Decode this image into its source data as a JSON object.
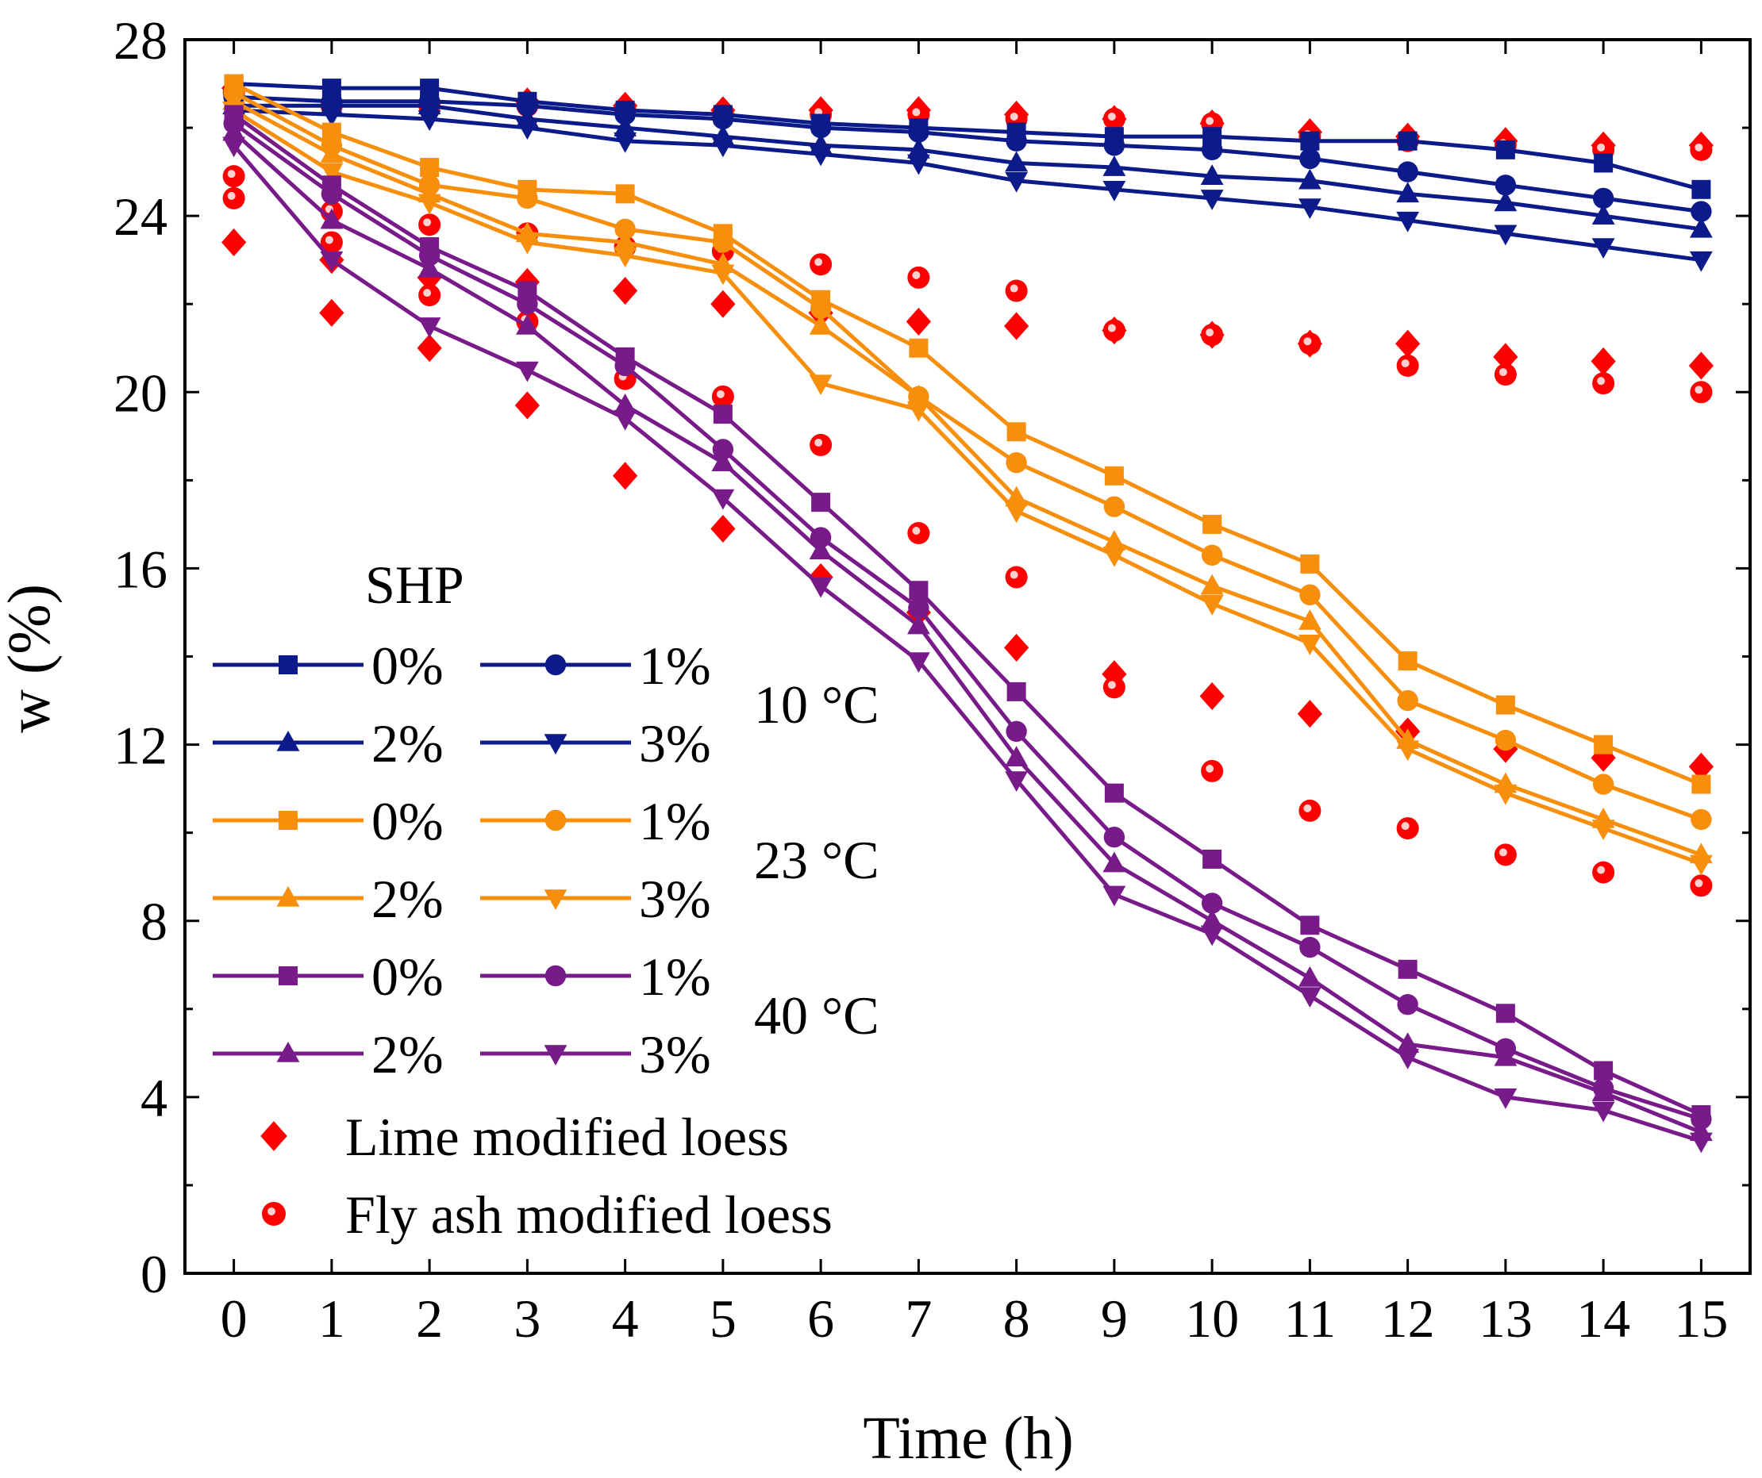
{
  "chart_data": {
    "type": "line",
    "xlabel": "Time (h)",
    "ylabel": "w (%)",
    "xlim": [
      -0.5,
      15.5
    ],
    "ylim": [
      0,
      28
    ],
    "x_ticks": [
      0,
      1,
      2,
      3,
      4,
      5,
      6,
      7,
      8,
      9,
      10,
      11,
      12,
      13,
      14,
      15
    ],
    "y_ticks": [
      0,
      4,
      8,
      12,
      16,
      20,
      24,
      28
    ],
    "x": [
      0,
      1,
      2,
      3,
      4,
      5,
      6,
      7,
      8,
      9,
      10,
      11,
      12,
      13,
      14,
      15
    ],
    "legend_title": "SHP",
    "colors": {
      "10C": "#0d1a8a",
      "23C": "#f78e0c",
      "40C": "#781a8a",
      "reference": "#ff0000"
    },
    "series": [
      {
        "name": "0%",
        "group": "10 °C",
        "marker": "square",
        "values": [
          27.0,
          26.9,
          26.9,
          26.6,
          26.4,
          26.3,
          26.1,
          26.0,
          25.9,
          25.8,
          25.8,
          25.7,
          25.7,
          25.5,
          25.2,
          24.6
        ]
      },
      {
        "name": "1%",
        "group": "10 °C",
        "marker": "circle",
        "values": [
          26.7,
          26.6,
          26.6,
          26.5,
          26.3,
          26.2,
          26.0,
          25.9,
          25.7,
          25.6,
          25.5,
          25.3,
          25.0,
          24.7,
          24.4,
          24.1
        ]
      },
      {
        "name": "2%",
        "group": "10 °C",
        "marker": "triangle",
        "values": [
          26.5,
          26.5,
          26.5,
          26.2,
          26.0,
          25.8,
          25.6,
          25.5,
          25.2,
          25.1,
          24.9,
          24.8,
          24.5,
          24.3,
          24.0,
          23.7
        ]
      },
      {
        "name": "3%",
        "group": "10 °C",
        "marker": "triangle-down",
        "values": [
          26.4,
          26.3,
          26.2,
          26.0,
          25.7,
          25.6,
          25.4,
          25.2,
          24.8,
          24.6,
          24.4,
          24.2,
          23.9,
          23.6,
          23.3,
          23.0
        ]
      },
      {
        "name": "0%",
        "group": "23 °C",
        "marker": "square",
        "values": [
          27.0,
          25.9,
          25.1,
          24.6,
          24.5,
          23.6,
          22.1,
          21.0,
          19.1,
          18.1,
          17.0,
          16.1,
          13.9,
          12.9,
          12.0,
          11.1
        ]
      },
      {
        "name": "1%",
        "group": "23 °C",
        "marker": "circle",
        "values": [
          26.8,
          25.6,
          24.7,
          24.4,
          23.7,
          23.4,
          21.9,
          19.9,
          18.4,
          17.4,
          16.3,
          15.4,
          13.0,
          12.1,
          11.1,
          10.3
        ]
      },
      {
        "name": "2%",
        "group": "23 °C",
        "marker": "triangle",
        "values": [
          26.6,
          25.4,
          24.5,
          23.6,
          23.4,
          22.9,
          21.5,
          19.9,
          17.6,
          16.6,
          15.6,
          14.8,
          12.1,
          11.1,
          10.3,
          9.5
        ]
      },
      {
        "name": "3%",
        "group": "23 °C",
        "marker": "triangle-down",
        "values": [
          26.4,
          25.0,
          24.3,
          23.4,
          23.1,
          22.7,
          20.2,
          19.6,
          17.3,
          16.3,
          15.2,
          14.3,
          11.9,
          10.9,
          10.1,
          9.3
        ]
      },
      {
        "name": "0%",
        "group": "40 °C",
        "marker": "square",
        "values": [
          26.3,
          24.7,
          23.3,
          22.3,
          20.8,
          19.5,
          17.5,
          15.5,
          13.2,
          10.9,
          9.4,
          7.9,
          6.9,
          5.9,
          4.6,
          3.6
        ]
      },
      {
        "name": "1%",
        "group": "40 °C",
        "marker": "circle",
        "values": [
          26.1,
          24.5,
          23.1,
          22.0,
          20.6,
          18.7,
          16.7,
          15.1,
          12.3,
          9.9,
          8.4,
          7.4,
          6.1,
          5.1,
          4.2,
          3.5
        ]
      },
      {
        "name": "2%",
        "group": "40 °C",
        "marker": "triangle",
        "values": [
          25.9,
          23.9,
          22.8,
          21.5,
          19.7,
          18.4,
          16.4,
          14.7,
          11.7,
          9.3,
          8.0,
          6.7,
          5.2,
          4.9,
          4.1,
          3.2
        ]
      },
      {
        "name": "3%",
        "group": "40 °C",
        "marker": "triangle-down",
        "values": [
          25.6,
          23.0,
          21.5,
          20.5,
          19.4,
          17.6,
          15.6,
          13.9,
          11.2,
          8.6,
          7.7,
          6.3,
          4.9,
          4.0,
          3.7,
          3.0
        ]
      }
    ],
    "reference_series": [
      {
        "name": "Lime modified loess",
        "marker": "diamond",
        "points": [
          [
            0,
            23.4
          ],
          [
            1,
            21.8
          ],
          [
            2,
            21.0
          ],
          [
            3,
            19.7
          ],
          [
            4,
            18.1
          ],
          [
            5,
            16.9
          ],
          [
            6,
            15.8
          ],
          [
            7,
            15.0
          ],
          [
            8,
            14.2
          ],
          [
            9,
            13.6
          ],
          [
            10,
            13.1
          ],
          [
            11,
            12.7
          ],
          [
            12,
            12.3
          ],
          [
            13,
            11.9
          ],
          [
            14,
            11.7
          ],
          [
            15,
            11.5
          ],
          [
            0,
            26.9
          ],
          [
            1,
            26.6
          ],
          [
            2,
            26.6
          ],
          [
            3,
            26.6
          ],
          [
            4,
            26.5
          ],
          [
            5,
            26.4
          ],
          [
            6,
            26.4
          ],
          [
            7,
            26.4
          ],
          [
            8,
            26.3
          ],
          [
            9,
            26.2
          ],
          [
            10,
            26.1
          ],
          [
            11,
            25.9
          ],
          [
            12,
            25.8
          ],
          [
            13,
            25.7
          ],
          [
            14,
            25.6
          ],
          [
            15,
            25.6
          ],
          [
            1,
            23.0
          ],
          [
            2,
            22.6
          ],
          [
            3,
            22.5
          ],
          [
            4,
            22.3
          ],
          [
            5,
            22.0
          ],
          [
            6,
            21.8
          ],
          [
            7,
            21.6
          ],
          [
            8,
            21.5
          ],
          [
            9,
            21.4
          ],
          [
            10,
            21.3
          ],
          [
            11,
            21.1
          ],
          [
            12,
            21.1
          ],
          [
            13,
            20.8
          ],
          [
            14,
            20.7
          ],
          [
            15,
            20.6
          ]
        ]
      },
      {
        "name": "Fly ash modified loess",
        "marker": "circle",
        "points": [
          [
            0,
            24.9
          ],
          [
            0,
            24.4
          ],
          [
            1,
            24.1
          ],
          [
            1,
            23.4
          ],
          [
            2,
            23.8
          ],
          [
            2,
            22.2
          ],
          [
            3,
            23.6
          ],
          [
            3,
            21.6
          ],
          [
            4,
            23.3
          ],
          [
            4,
            20.3
          ],
          [
            5,
            23.2
          ],
          [
            5,
            19.9
          ],
          [
            6,
            22.9
          ],
          [
            6,
            18.8
          ],
          [
            7,
            22.6
          ],
          [
            7,
            16.8
          ],
          [
            8,
            22.3
          ],
          [
            8,
            15.8
          ],
          [
            9,
            21.4
          ],
          [
            9,
            13.3
          ],
          [
            10,
            21.3
          ],
          [
            10,
            11.4
          ],
          [
            11,
            21.1
          ],
          [
            11,
            10.5
          ],
          [
            12,
            20.6
          ],
          [
            12,
            10.1
          ],
          [
            13,
            20.4
          ],
          [
            13,
            9.5
          ],
          [
            14,
            20.2
          ],
          [
            14,
            9.1
          ],
          [
            15,
            20.0
          ],
          [
            15,
            8.8
          ],
          [
            0,
            26.8
          ],
          [
            1,
            26.5
          ],
          [
            2,
            26.5
          ],
          [
            3,
            26.5
          ],
          [
            4,
            26.4
          ],
          [
            5,
            26.3
          ],
          [
            6,
            26.3
          ],
          [
            7,
            26.3
          ],
          [
            8,
            26.2
          ],
          [
            9,
            26.2
          ],
          [
            10,
            26.1
          ],
          [
            11,
            25.8
          ],
          [
            12,
            25.7
          ],
          [
            13,
            25.6
          ],
          [
            14,
            25.5
          ],
          [
            15,
            25.5
          ]
        ]
      }
    ],
    "legend_groups": [
      {
        "label": "10 °C",
        "entries": [
          "0%",
          "1%",
          "2%",
          "3%"
        ]
      },
      {
        "label": "23 °C",
        "entries": [
          "0%",
          "1%",
          "2%",
          "3%"
        ]
      },
      {
        "label": "40 °C",
        "entries": [
          "0%",
          "1%",
          "2%",
          "3%"
        ]
      }
    ],
    "legend_reference": [
      "Lime modified loess",
      "Fly ash modified loess"
    ]
  }
}
